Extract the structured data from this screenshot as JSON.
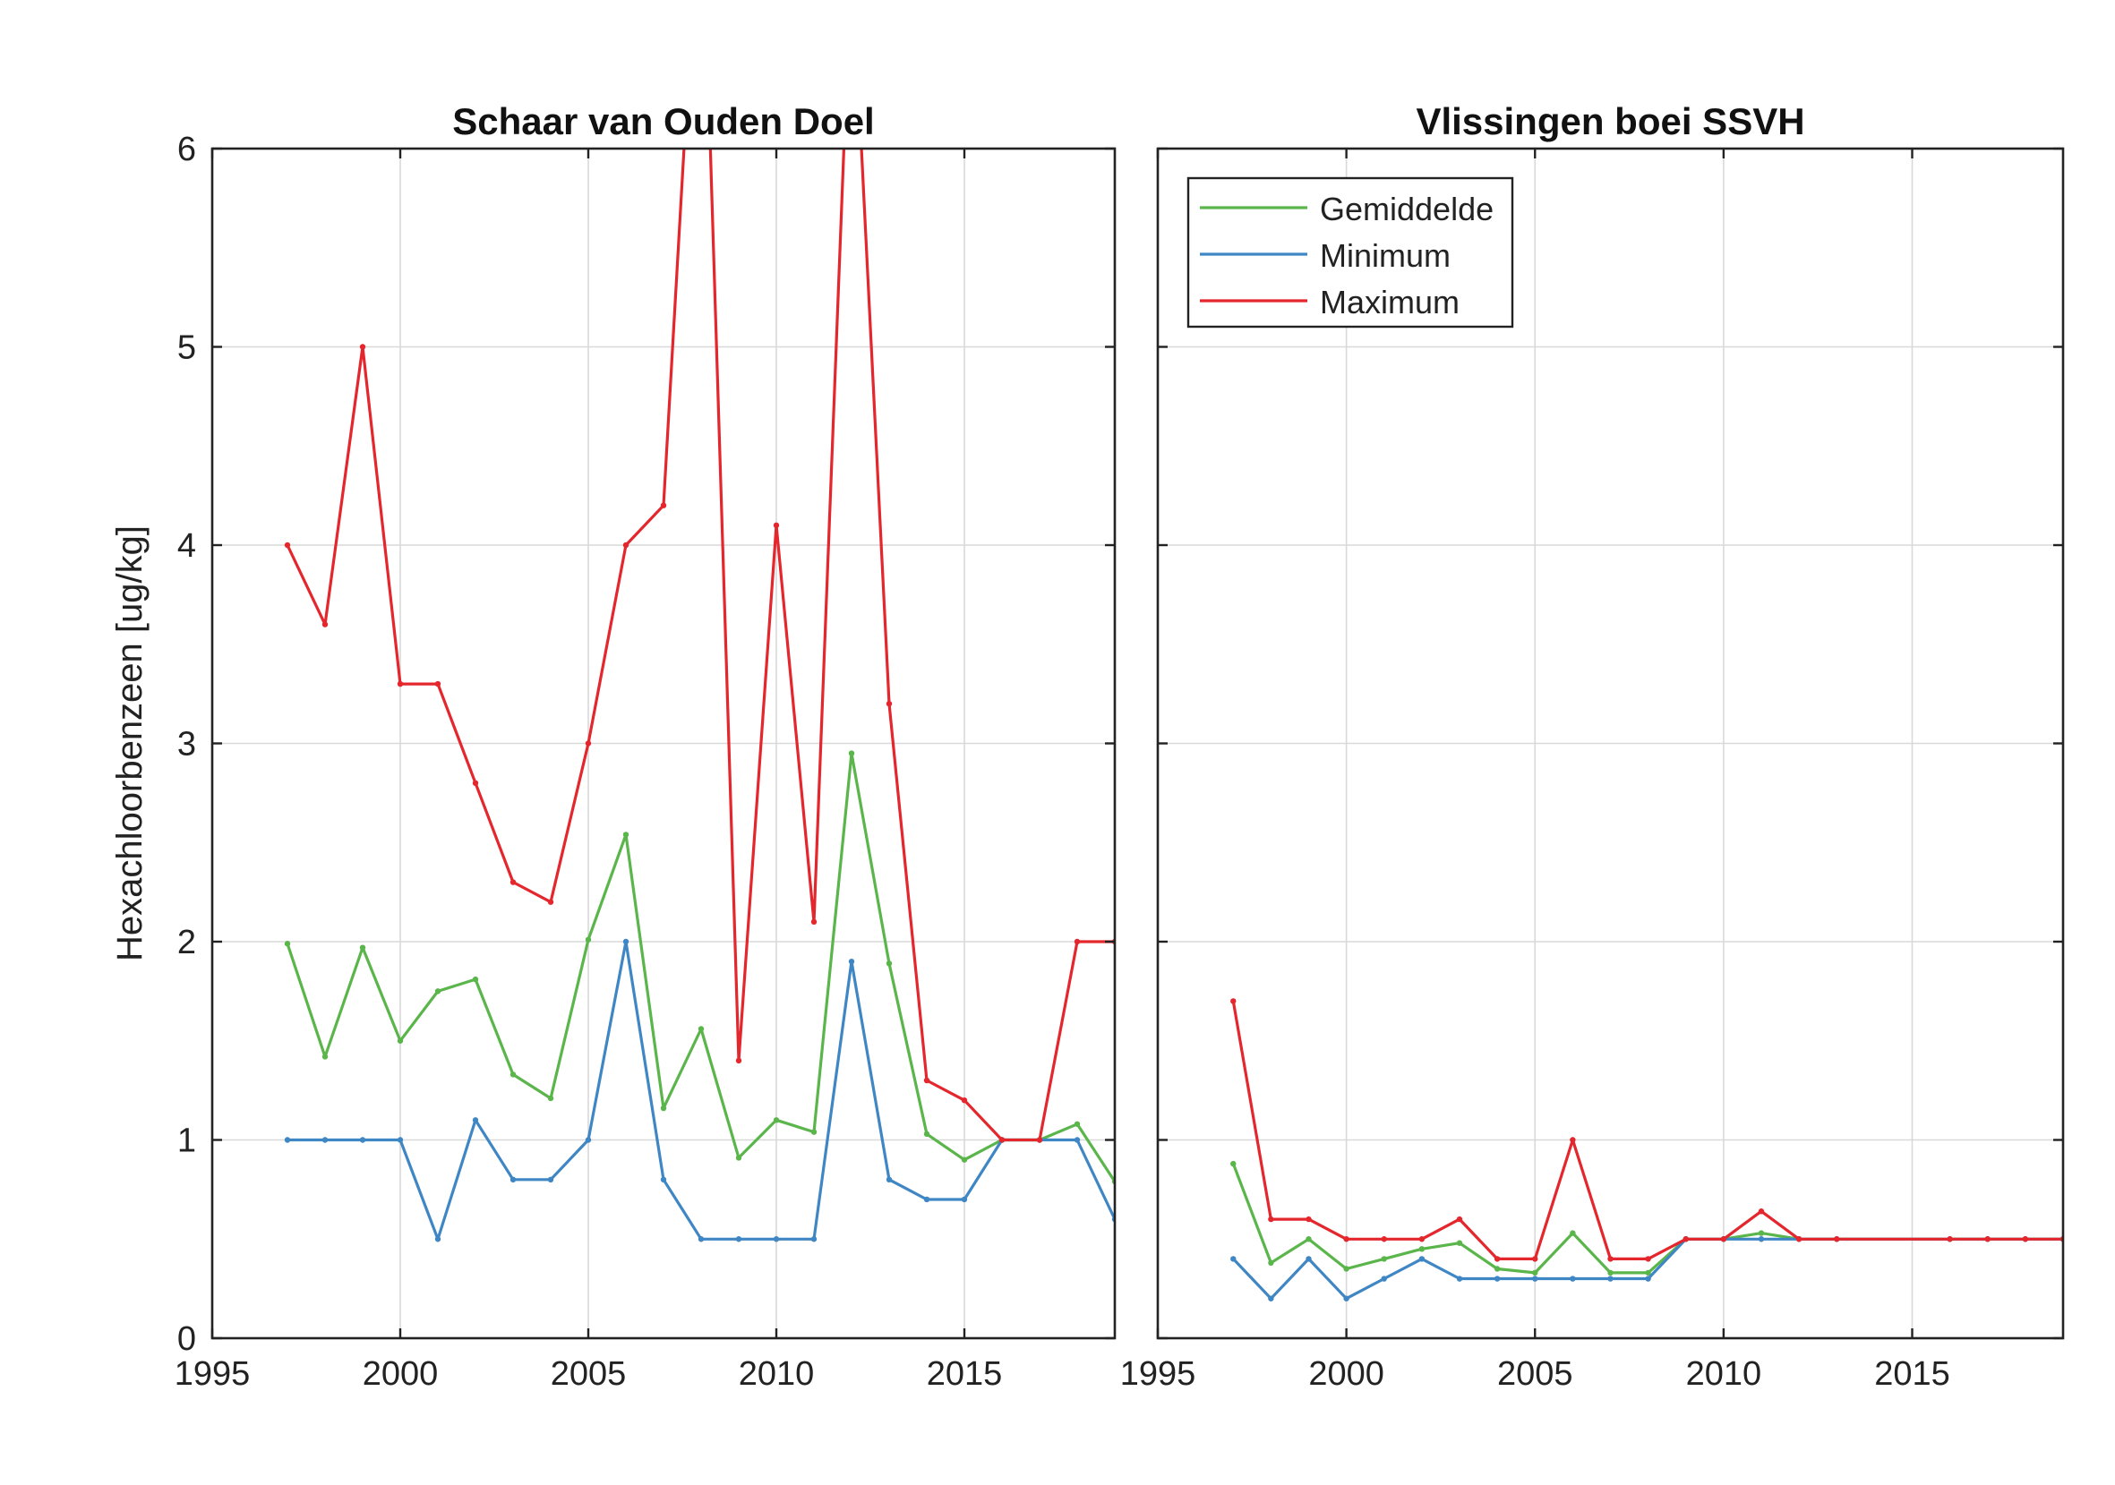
{
  "colors": {
    "mean": "#5ab54a",
    "minimum": "#3f86c4",
    "maximum": "#e4262d",
    "grid": "#d9d9d9",
    "axis": "#222222"
  },
  "legend": {
    "placement": "top-left",
    "entries": [
      "Gemiddelde",
      "Minimum",
      "Maximum"
    ]
  },
  "chart_data": [
    {
      "type": "line",
      "title": "Schaar van Ouden Doel",
      "ylabel": "Hexachloorbenzeen [ug/kg]",
      "xlim": [
        1995,
        2019
      ],
      "ylim": [
        0,
        6
      ],
      "xticks": [
        "1995",
        "2000",
        "2005",
        "2010",
        "2015"
      ],
      "yticks": [
        "0",
        "1",
        "2",
        "3",
        "4",
        "5",
        "6"
      ],
      "grid": true,
      "series": [
        {
          "name": "Gemiddelde",
          "color": "#5ab54a",
          "x": [
            1997,
            1998,
            1999,
            2000,
            2001,
            2002,
            2003,
            2004,
            2005,
            2006,
            2007,
            2008,
            2009,
            2010,
            2011,
            2012,
            2013,
            2014,
            2015,
            2016,
            2017,
            2018,
            2019
          ],
          "y": [
            1.99,
            1.42,
            1.97,
            1.5,
            1.75,
            1.81,
            1.33,
            1.21,
            2.01,
            2.54,
            1.16,
            1.56,
            0.91,
            1.1,
            1.04,
            2.95,
            1.89,
            1.03,
            0.9,
            1.0,
            1.0,
            1.08,
            0.79
          ]
        },
        {
          "name": "Minimum",
          "color": "#3f86c4",
          "x": [
            1997,
            1998,
            1999,
            2000,
            2001,
            2002,
            2003,
            2004,
            2005,
            2006,
            2007,
            2008,
            2009,
            2010,
            2011,
            2012,
            2013,
            2014,
            2015,
            2016,
            2017,
            2018,
            2019
          ],
          "y": [
            1.0,
            1.0,
            1.0,
            1.0,
            0.5,
            1.1,
            0.8,
            0.8,
            1.0,
            2.0,
            0.8,
            0.5,
            0.5,
            0.5,
            0.5,
            1.9,
            0.8,
            0.7,
            0.7,
            1.0,
            1.0,
            1.0,
            0.6
          ]
        },
        {
          "name": "Maximum",
          "color": "#e4262d",
          "x": [
            1997,
            1998,
            1999,
            2000,
            2001,
            2002,
            2003,
            2004,
            2005,
            2006,
            2007,
            2008,
            2009,
            2010,
            2011,
            2012,
            2013,
            2014,
            2015,
            2016,
            2017,
            2018,
            2019
          ],
          "y": [
            4.0,
            3.6,
            5.0,
            3.3,
            3.3,
            2.8,
            2.3,
            2.2,
            3.0,
            4.0,
            4.2,
            7.5,
            1.4,
            4.1,
            2.1,
            7.0,
            3.2,
            1.3,
            1.2,
            1.0,
            1.0,
            2.0,
            2.0
          ]
        }
      ]
    },
    {
      "type": "line",
      "title": "Vlissingen boei SSVH",
      "ylabel": "",
      "xlim": [
        1995,
        2019
      ],
      "ylim": [
        0,
        6
      ],
      "xticks": [
        "1995",
        "2000",
        "2005",
        "2010",
        "2015"
      ],
      "yticks": [
        "0",
        "1",
        "2",
        "3",
        "4",
        "5",
        "6"
      ],
      "grid": true,
      "series": [
        {
          "name": "Gemiddelde",
          "color": "#5ab54a",
          "x": [
            1997,
            1998,
            1999,
            2000,
            2001,
            2002,
            2003,
            2004,
            2005,
            2006,
            2007,
            2008,
            2009,
            2010,
            2011,
            2012,
            2013,
            2016,
            2017,
            2018,
            2019
          ],
          "y": [
            0.88,
            0.38,
            0.5,
            0.35,
            0.4,
            0.45,
            0.48,
            0.35,
            0.33,
            0.53,
            0.33,
            0.33,
            0.5,
            0.5,
            0.53,
            0.5,
            0.5,
            0.5,
            0.5,
            0.5,
            0.5
          ]
        },
        {
          "name": "Minimum",
          "color": "#3f86c4",
          "x": [
            1997,
            1998,
            1999,
            2000,
            2001,
            2002,
            2003,
            2004,
            2005,
            2006,
            2007,
            2008,
            2009,
            2010,
            2011,
            2012,
            2013,
            2016,
            2017,
            2018,
            2019
          ],
          "y": [
            0.4,
            0.2,
            0.4,
            0.2,
            0.3,
            0.4,
            0.3,
            0.3,
            0.3,
            0.3,
            0.3,
            0.3,
            0.5,
            0.5,
            0.5,
            0.5,
            0.5,
            0.5,
            0.5,
            0.5,
            0.5
          ]
        },
        {
          "name": "Maximum",
          "color": "#e4262d",
          "x": [
            1997,
            1998,
            1999,
            2000,
            2001,
            2002,
            2003,
            2004,
            2005,
            2006,
            2007,
            2008,
            2009,
            2010,
            2011,
            2012,
            2013,
            2016,
            2017,
            2018,
            2019
          ],
          "y": [
            1.7,
            0.6,
            0.6,
            0.5,
            0.5,
            0.5,
            0.6,
            0.4,
            0.4,
            1.0,
            0.4,
            0.4,
            0.5,
            0.5,
            0.64,
            0.5,
            0.5,
            0.5,
            0.5,
            0.5,
            0.5
          ]
        }
      ]
    }
  ]
}
